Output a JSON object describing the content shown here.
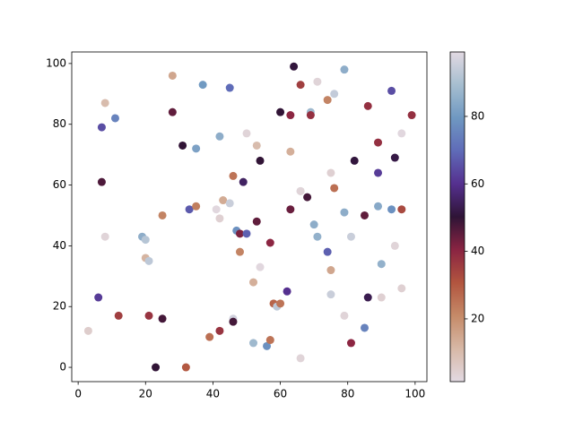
{
  "chart_data": {
    "type": "scatter",
    "x": [
      3,
      8,
      7,
      11,
      7,
      8,
      6,
      12,
      19,
      20,
      20,
      21,
      21,
      25,
      23,
      25,
      28,
      28,
      31,
      33,
      35,
      35,
      37,
      32,
      39,
      41,
      42,
      42,
      43,
      45,
      42,
      45,
      46,
      46,
      46,
      47,
      48,
      49,
      50,
      48,
      50,
      52,
      52,
      53,
      53,
      54,
      54,
      56,
      57,
      57,
      58,
      59,
      60,
      60,
      62,
      63,
      63,
      63,
      64,
      66,
      66,
      66,
      66,
      68,
      69,
      69,
      70,
      71,
      71,
      74,
      74,
      75,
      75,
      75,
      76,
      76,
      79,
      79,
      79,
      81,
      81,
      82,
      85,
      85,
      86,
      86,
      89,
      89,
      89,
      90,
      90,
      93,
      93,
      94,
      94,
      96,
      96,
      96,
      99
    ],
    "y": [
      12,
      87,
      79,
      82,
      61,
      43,
      23,
      17,
      43,
      42,
      36,
      35,
      17,
      16,
      0,
      50,
      96,
      84,
      73,
      52,
      53,
      72,
      93,
      0,
      10,
      52,
      49,
      76,
      55,
      54,
      12,
      92,
      63,
      16,
      15,
      45,
      44,
      61,
      44,
      38,
      77,
      28,
      8,
      73,
      48,
      68,
      33,
      7,
      9,
      41,
      21,
      20,
      21,
      84,
      25,
      83,
      71,
      52,
      99,
      93,
      58,
      58,
      3,
      56,
      84,
      83,
      47,
      43,
      94,
      88,
      38,
      64,
      32,
      24,
      90,
      59,
      98,
      51,
      17,
      43,
      8,
      68,
      13,
      50,
      86,
      23,
      74,
      64,
      53,
      34,
      23,
      91,
      52,
      69,
      40,
      77,
      52,
      26,
      83
    ],
    "c": [
      5,
      10,
      65,
      75,
      47,
      3,
      62,
      35,
      85,
      92,
      12,
      93,
      37,
      48,
      50,
      22,
      15,
      45,
      50,
      67,
      23,
      82,
      80,
      30,
      26,
      2,
      4,
      85,
      14,
      95,
      37,
      70,
      25,
      96,
      48,
      78,
      42,
      55,
      68,
      22,
      3,
      13,
      88,
      10,
      45,
      50,
      2,
      78,
      25,
      40,
      28,
      93,
      25,
      50,
      60,
      40,
      13,
      44,
      51,
      35,
      97,
      3,
      3,
      48,
      88,
      38,
      85,
      86,
      3,
      22,
      68,
      4,
      15,
      95,
      94,
      26,
      85,
      85,
      3,
      95,
      40,
      51,
      75,
      45,
      38,
      53,
      38,
      62,
      84,
      86,
      4,
      65,
      78,
      52,
      3,
      2,
      33,
      4,
      38
    ],
    "colormap": "twilight_r",
    "xlim": [
      -1.9,
      103.5
    ],
    "ylim": [
      -4.7,
      103.8
    ],
    "xticks": [
      0,
      20,
      40,
      60,
      80,
      100
    ],
    "yticks": [
      0,
      20,
      40,
      60,
      80,
      100
    ],
    "clim": [
      1.4,
      99.1
    ],
    "cticks": [
      20,
      40,
      60,
      80
    ]
  }
}
